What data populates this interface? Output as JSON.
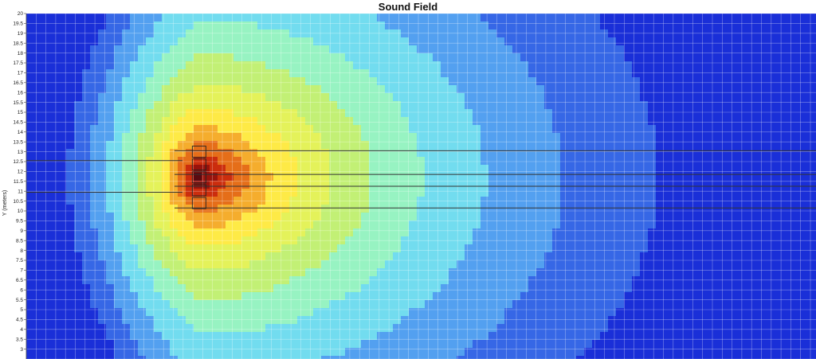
{
  "chart_data": {
    "type": "heatmap",
    "title": "Sound Field",
    "xlabel": "",
    "ylabel": "Y (meters)",
    "ylim": [
      2.5,
      20
    ],
    "yticks": [
      "20",
      "19.5",
      "19",
      "18.5",
      "18",
      "17.5",
      "17",
      "16.5",
      "16",
      "15.5",
      "15",
      "14.5",
      "14",
      "13.5",
      "13",
      "12.5",
      "12",
      "11.5",
      "11",
      "10.5",
      "10",
      "9.5",
      "9",
      "8.5",
      "8",
      "7.5",
      "7",
      "6.5",
      "6",
      "5.5",
      "5",
      "4.5",
      "4",
      "3.5",
      "3"
    ],
    "grid": true,
    "colormap": "jet",
    "colormap_stops": [
      "#1a2fd8",
      "#4a8ff0",
      "#7ff5ee",
      "#c8f06a",
      "#fff34a",
      "#f08a1e",
      "#c41a0a",
      "#5a0a10"
    ],
    "source": {
      "x": 9.5,
      "y": 11.7
    },
    "rays_y": [
      12.55,
      10.95,
      13.05,
      11.85,
      11.25,
      10.15
    ]
  }
}
